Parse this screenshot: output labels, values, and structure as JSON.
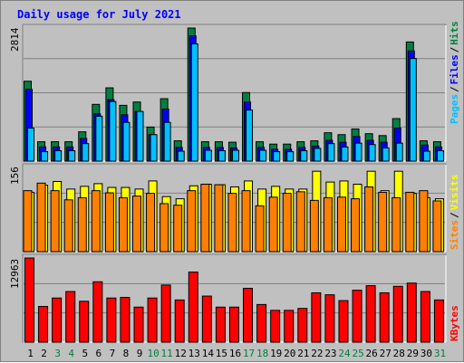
{
  "title": "Daily usage for July 2021",
  "colors": {
    "background": "#c0c0c0",
    "hits": "#008040",
    "files": "#0000ff",
    "pages": "#00c0ff",
    "visits": "#ffff00",
    "sites": "#ff8000",
    "kbytes": "#ff0000",
    "weekday_label": "#000000",
    "weekend_label": "#008040"
  },
  "chart_data": [
    {
      "type": "bar",
      "name": "hits-files-pages",
      "ymax_label": "2814",
      "legend": [
        {
          "label": "Pages",
          "color": "#00c0ff"
        },
        {
          "sep": "/"
        },
        {
          "label": "Files",
          "color": "#0000ff"
        },
        {
          "sep": "/"
        },
        {
          "label": "Hits",
          "color": "#008040"
        }
      ],
      "ymax": 2814,
      "series": [
        {
          "name": "Hits",
          "values": [
            1690,
            410,
            410,
            410,
            620,
            1200,
            1550,
            1180,
            1250,
            720,
            1320,
            430,
            2814,
            410,
            410,
            400,
            1450,
            410,
            360,
            360,
            410,
            430,
            600,
            560,
            680,
            580,
            540,
            900,
            2520,
            430,
            410
          ]
        },
        {
          "name": "Files",
          "values": [
            1520,
            300,
            300,
            300,
            480,
            1000,
            1300,
            980,
            1050,
            560,
            1100,
            290,
            2650,
            290,
            290,
            280,
            1250,
            290,
            250,
            250,
            290,
            320,
            440,
            400,
            520,
            440,
            400,
            700,
            2330,
            340,
            300
          ]
        },
        {
          "name": "Pages",
          "values": [
            700,
            200,
            220,
            220,
            370,
            950,
            1260,
            820,
            1050,
            560,
            820,
            210,
            2480,
            230,
            220,
            230,
            1080,
            230,
            200,
            200,
            220,
            270,
            370,
            300,
            380,
            350,
            280,
            380,
            2170,
            210,
            220
          ]
        }
      ]
    },
    {
      "type": "bar",
      "name": "visits-sites",
      "ymax_label": "156",
      "legend": [
        {
          "label": "Sites",
          "color": "#ff8000"
        },
        {
          "sep": "/"
        },
        {
          "label": "Visits",
          "color": "#ffff00"
        }
      ],
      "ymax": 156,
      "series": [
        {
          "name": "Visits",
          "values": [
            110,
            123,
            130,
            116,
            121,
            126,
            119,
            119,
            116,
            131,
            102,
            98,
            122,
            125,
            124,
            120,
            131,
            116,
            121,
            116,
            116,
            149,
            129,
            131,
            125,
            149,
            113,
            149,
            108,
            100,
            98
          ]
        },
        {
          "name": "Sites",
          "values": [
            113,
            127,
            113,
            96,
            100,
            113,
            109,
            100,
            103,
            108,
            89,
            86,
            113,
            125,
            124,
            108,
            113,
            85,
            101,
            108,
            111,
            95,
            100,
            101,
            98,
            120,
            110,
            100,
            110,
            113,
            94
          ]
        }
      ]
    },
    {
      "type": "bar",
      "name": "kbytes",
      "ymax_label": "12963",
      "legend": [
        {
          "label": "KBytes",
          "color": "#ff0000"
        }
      ],
      "ymax": 12963,
      "series": [
        {
          "name": "KBytes",
          "values": [
            12963,
            5500,
            6800,
            7800,
            6300,
            9300,
            6800,
            6900,
            5400,
            6800,
            8800,
            6500,
            10800,
            7100,
            5400,
            5400,
            8300,
            5800,
            4900,
            4900,
            5200,
            7600,
            7300,
            6400,
            8000,
            8700,
            7600,
            8600,
            9100,
            7800,
            6500
          ]
        }
      ]
    }
  ],
  "days": [
    "1",
    "2",
    "3",
    "4",
    "5",
    "6",
    "7",
    "8",
    "9",
    "10",
    "11",
    "12",
    "13",
    "14",
    "15",
    "16",
    "17",
    "18",
    "19",
    "20",
    "21",
    "22",
    "23",
    "24",
    "25",
    "26",
    "27",
    "28",
    "29",
    "30",
    "31"
  ],
  "weekend_days": [
    3,
    4,
    10,
    11,
    17,
    18,
    24,
    25,
    31
  ]
}
